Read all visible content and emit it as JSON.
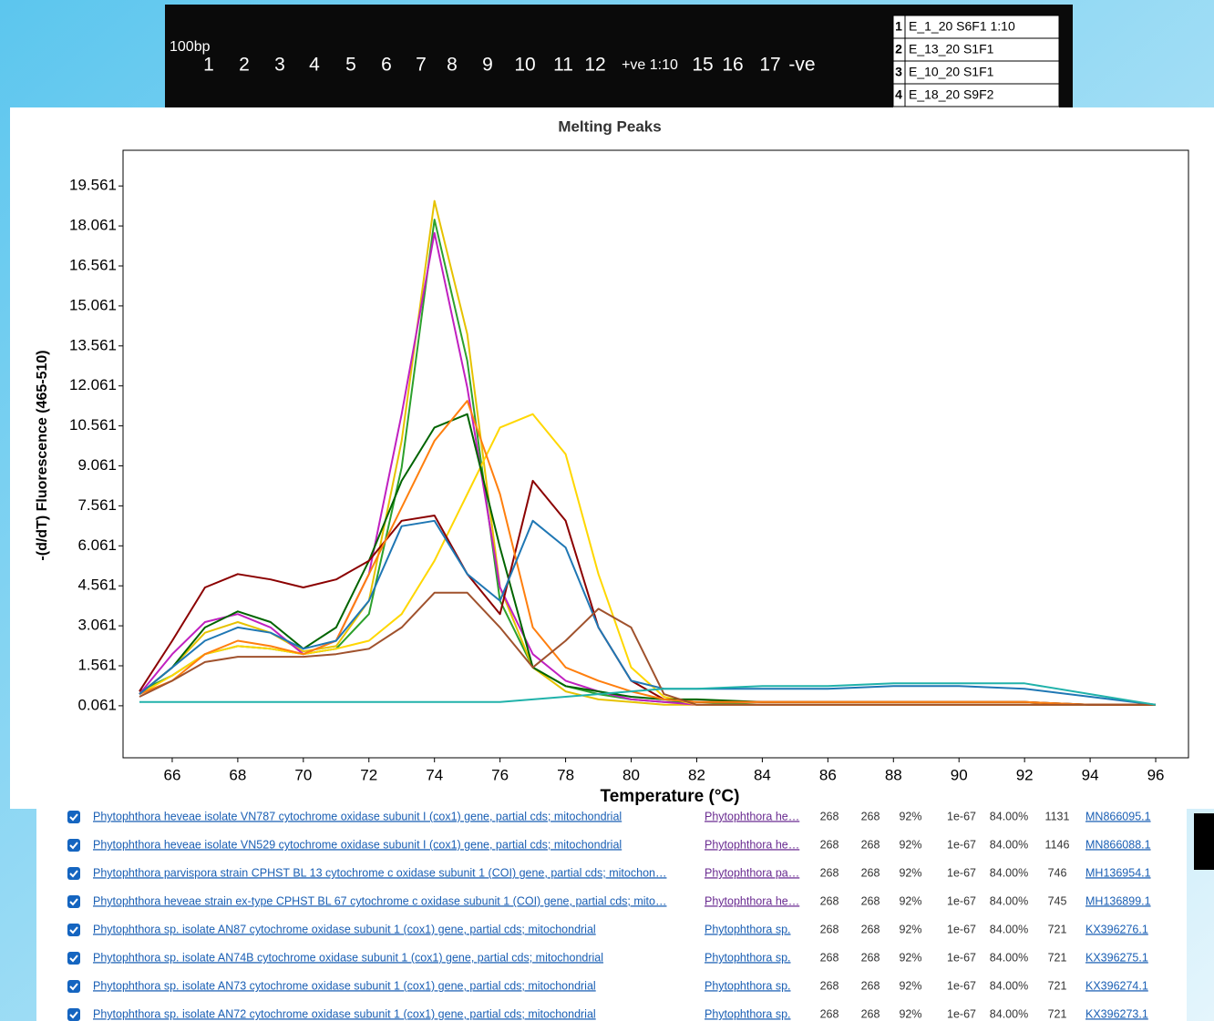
{
  "gel": {
    "marker": "100bp",
    "lanes": [
      "1",
      "2",
      "3",
      "4",
      "5",
      "6",
      "7",
      "8",
      "9",
      "10",
      "11",
      "12",
      "+ve 1:10",
      "15",
      "16",
      "17",
      "-ve"
    ],
    "legend": [
      [
        "1",
        "E_1_20 S6F1 1:10"
      ],
      [
        "2",
        "E_13_20 S1F1"
      ],
      [
        "3",
        "E_10_20 S1F1"
      ],
      [
        "4",
        "E_18_20 S9F2"
      ]
    ]
  },
  "chart_data": {
    "type": "line",
    "title": "Melting Peaks",
    "x_label": "Temperature (°C)",
    "y_label": "-(d/dT) Fluorescence (465-510)",
    "x": [
      65,
      66,
      67,
      68,
      69,
      70,
      71,
      72,
      73,
      74,
      75,
      76,
      77,
      78,
      79,
      80,
      81,
      82,
      84,
      86,
      88,
      90,
      92,
      94,
      96
    ],
    "xlim": [
      64.5,
      97
    ],
    "xticks": [
      66,
      68,
      70,
      72,
      74,
      76,
      78,
      80,
      82,
      84,
      86,
      88,
      90,
      92,
      94,
      96
    ],
    "ylim": [
      -1.89,
      20.9
    ],
    "yticks": [
      0.061,
      1.561,
      3.061,
      4.561,
      6.061,
      7.561,
      9.061,
      10.561,
      12.061,
      13.561,
      15.061,
      16.561,
      18.061,
      19.561
    ],
    "series": [
      {
        "color": "#2ca02c",
        "values": [
          0.6,
          1.2,
          2.0,
          2.3,
          2.2,
          2.0,
          2.2,
          3.5,
          9,
          18.3,
          13,
          4,
          1.5,
          0.8,
          0.5,
          0.3,
          0.2,
          0.2,
          0.1,
          0.1,
          0.1,
          0.1,
          0.1,
          0.1,
          0.1
        ]
      },
      {
        "color": "#e6c200",
        "values": [
          0.5,
          1.5,
          2.8,
          3.2,
          2.8,
          2.1,
          2.3,
          4,
          10,
          19,
          14,
          4.5,
          1.5,
          0.6,
          0.3,
          0.2,
          0.1,
          0.1,
          0.1,
          0.1,
          0.1,
          0.1,
          0.1,
          0.1,
          0.1
        ]
      },
      {
        "color": "#c020c0",
        "values": [
          0.5,
          2,
          3.2,
          3.5,
          3,
          2,
          2.5,
          5,
          11,
          17.8,
          12,
          4.5,
          2,
          1,
          0.6,
          0.3,
          0.2,
          0.1,
          0.1,
          0.1,
          0.1,
          0.1,
          0.1,
          0.1,
          0.1
        ]
      },
      {
        "color": "#ffd700",
        "values": [
          0.5,
          1.2,
          2,
          2.3,
          2.2,
          2.0,
          2.2,
          2.5,
          3.5,
          5.5,
          8,
          10.5,
          11,
          9.5,
          5,
          1.5,
          0.4,
          0.1,
          0.1,
          0.1,
          0.1,
          0.1,
          0.1,
          0.1,
          0.1
        ]
      },
      {
        "color": "#006400",
        "values": [
          0.5,
          1.5,
          3,
          3.6,
          3.2,
          2.2,
          3,
          5.5,
          8.5,
          10.5,
          11,
          6,
          1.5,
          0.8,
          0.6,
          0.4,
          0.3,
          0.3,
          0.2,
          0.2,
          0.2,
          0.2,
          0.2,
          0.1,
          0.1
        ]
      },
      {
        "color": "#8b0000",
        "values": [
          0.6,
          2.5,
          4.5,
          5,
          4.8,
          4.5,
          4.8,
          5.5,
          7,
          7.2,
          5,
          3.5,
          8.5,
          7,
          3,
          1,
          0.3,
          0.2,
          0.2,
          0.2,
          0.2,
          0.2,
          0.2,
          0.1,
          0.1
        ]
      },
      {
        "color": "#ff7f0e",
        "values": [
          0.5,
          1,
          2,
          2.5,
          2.3,
          2,
          2.5,
          5,
          7.5,
          10,
          11.5,
          8,
          3,
          1.5,
          1,
          0.6,
          0.3,
          0.2,
          0.2,
          0.2,
          0.2,
          0.2,
          0.2,
          0.1,
          0.1
        ]
      },
      {
        "color": "#1f77b4",
        "values": [
          0.5,
          1.5,
          2.5,
          3,
          2.8,
          2.2,
          2.5,
          4,
          6.8,
          7,
          5,
          4,
          7,
          6,
          3,
          1,
          0.7,
          0.7,
          0.7,
          0.7,
          0.8,
          0.8,
          0.7,
          0.4,
          0.1
        ]
      },
      {
        "color": "#a0522d",
        "values": [
          0.4,
          1,
          1.7,
          1.9,
          1.9,
          1.9,
          2,
          2.2,
          3,
          4.3,
          4.3,
          3,
          1.5,
          2.5,
          3.7,
          3,
          0.5,
          0.1,
          0.1,
          0.1,
          0.1,
          0.1,
          0.1,
          0.1,
          0.1
        ]
      },
      {
        "color": "#20b2aa",
        "values": [
          0.2,
          0.2,
          0.2,
          0.2,
          0.2,
          0.2,
          0.2,
          0.2,
          0.2,
          0.2,
          0.2,
          0.2,
          0.3,
          0.4,
          0.5,
          0.6,
          0.7,
          0.7,
          0.8,
          0.8,
          0.9,
          0.9,
          0.9,
          0.5,
          0.1
        ]
      }
    ]
  },
  "table": {
    "rows": [
      [
        "Phytophthora heveae isolate VN787 cytochrome oxidase subunit I (cox1) gene, partial cds; mitochondrial",
        "Phytophthora he…",
        "268",
        "268",
        "92%",
        "1e-67",
        "84.00%",
        "1131",
        "MN866095.1"
      ],
      [
        "Phytophthora heveae isolate VN529 cytochrome oxidase subunit I (cox1) gene, partial cds; mitochondrial",
        "Phytophthora he…",
        "268",
        "268",
        "92%",
        "1e-67",
        "84.00%",
        "1146",
        "MN866088.1"
      ],
      [
        "Phytophthora parvispora strain CPHST BL 13 cytochrome c oxidase subunit 1 (COI) gene, partial cds; mitochon…",
        "Phytophthora pa…",
        "268",
        "268",
        "92%",
        "1e-67",
        "84.00%",
        "746",
        "MH136954.1"
      ],
      [
        "Phytophthora heveae strain ex-type CPHST BL 67 cytochrome c oxidase subunit 1 (COI) gene, partial cds; mito…",
        "Phytophthora he…",
        "268",
        "268",
        "92%",
        "1e-67",
        "84.00%",
        "745",
        "MH136899.1"
      ],
      [
        "Phytophthora sp. isolate AN87 cytochrome oxidase subunit 1 (cox1) gene, partial cds; mitochondrial",
        "Phytophthora sp.",
        "268",
        "268",
        "92%",
        "1e-67",
        "84.00%",
        "721",
        "KX396276.1"
      ],
      [
        "Phytophthora sp. isolate AN74B cytochrome oxidase subunit 1 (cox1) gene, partial cds; mitochondrial",
        "Phytophthora sp.",
        "268",
        "268",
        "92%",
        "1e-67",
        "84.00%",
        "721",
        "KX396275.1"
      ],
      [
        "Phytophthora sp. isolate AN73 cytochrome oxidase subunit 1 (cox1) gene, partial cds; mitochondrial",
        "Phytophthora sp.",
        "268",
        "268",
        "92%",
        "1e-67",
        "84.00%",
        "721",
        "KX396274.1"
      ],
      [
        "Phytophthora sp. isolate AN72 cytochrome oxidase subunit 1 (cox1) gene, partial cds; mitochondrial",
        "Phytophthora sp.",
        "268",
        "268",
        "92%",
        "1e-67",
        "84.00%",
        "721",
        "KX396273.1"
      ]
    ]
  }
}
